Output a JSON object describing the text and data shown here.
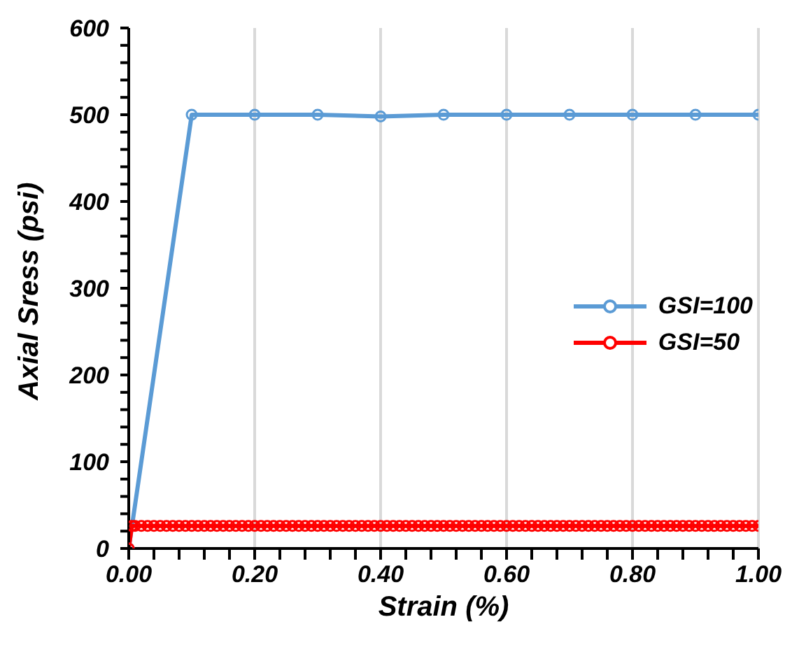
{
  "chart_data": {
    "type": "line",
    "xlabel": "Strain (%)",
    "ylabel": "Axial Sress (psi)",
    "xlim": [
      0,
      1
    ],
    "ylim": [
      0,
      600
    ],
    "xticks": [
      {
        "value": 0,
        "label": "0.00"
      },
      {
        "value": 0.04,
        "label": null
      },
      {
        "value": 0.08,
        "label": null
      },
      {
        "value": 0.12,
        "label": null
      },
      {
        "value": 0.16,
        "label": null
      },
      {
        "value": 0.2,
        "label": "0.20"
      },
      {
        "value": 0.24,
        "label": null
      },
      {
        "value": 0.28,
        "label": null
      },
      {
        "value": 0.32,
        "label": null
      },
      {
        "value": 0.36,
        "label": null
      },
      {
        "value": 0.4,
        "label": "0.40"
      },
      {
        "value": 0.44,
        "label": null
      },
      {
        "value": 0.48,
        "label": null
      },
      {
        "value": 0.52,
        "label": null
      },
      {
        "value": 0.56,
        "label": null
      },
      {
        "value": 0.6,
        "label": "0.60"
      },
      {
        "value": 0.64,
        "label": null
      },
      {
        "value": 0.68,
        "label": null
      },
      {
        "value": 0.72,
        "label": null
      },
      {
        "value": 0.76,
        "label": null
      },
      {
        "value": 0.8,
        "label": "0.80"
      },
      {
        "value": 0.84,
        "label": null
      },
      {
        "value": 0.88,
        "label": null
      },
      {
        "value": 0.92,
        "label": null
      },
      {
        "value": 0.96,
        "label": null
      },
      {
        "value": 1,
        "label": "1.00"
      }
    ],
    "yticks": [
      0,
      {
        "value": 20,
        "label": null
      },
      {
        "value": 40,
        "label": null
      },
      {
        "value": 60,
        "label": null
      },
      {
        "value": 80,
        "label": null
      },
      100,
      {
        "value": 120,
        "label": null
      },
      {
        "value": 140,
        "label": null
      },
      {
        "value": 160,
        "label": null
      },
      {
        "value": 180,
        "label": null
      },
      200,
      {
        "value": 220,
        "label": null
      },
      {
        "value": 240,
        "label": null
      },
      {
        "value": 260,
        "label": null
      },
      {
        "value": 280,
        "label": null
      },
      300,
      {
        "value": 320,
        "label": null
      },
      {
        "value": 340,
        "label": null
      },
      {
        "value": 360,
        "label": null
      },
      {
        "value": 380,
        "label": null
      },
      400,
      {
        "value": 420,
        "label": null
      },
      {
        "value": 440,
        "label": null
      },
      {
        "value": 460,
        "label": null
      },
      {
        "value": 480,
        "label": null
      },
      500,
      {
        "value": 520,
        "label": null
      },
      {
        "value": 540,
        "label": null
      },
      {
        "value": 560,
        "label": null
      },
      {
        "value": 580,
        "label": null
      },
      600
    ],
    "grid": "x",
    "legend": "right",
    "marker": "circle",
    "line_style": "solid",
    "series": [
      {
        "name": "GSI=100",
        "color": "#5b9bd5",
        "x": [
          0,
          0.1,
          0.2,
          0.3,
          0.4,
          0.5,
          0.6,
          0.7,
          0.8,
          0.9,
          1.0
        ],
        "values": [
          0,
          500,
          500,
          500,
          498,
          500,
          500,
          500,
          500,
          500,
          500
        ]
      },
      {
        "name": "GSI=50",
        "color": "#ff0000",
        "x": [
          0,
          0.005,
          0.01,
          0.02,
          0.03,
          0.04,
          0.05,
          0.06,
          0.07,
          0.08,
          0.09,
          0.1,
          0.11,
          0.12,
          0.13,
          0.14,
          0.15,
          0.16,
          0.17,
          0.18,
          0.19,
          0.2,
          0.21,
          0.22,
          0.23,
          0.24,
          0.25,
          0.26,
          0.27,
          0.28,
          0.29,
          0.3,
          0.31,
          0.32,
          0.33,
          0.34,
          0.35,
          0.36,
          0.37,
          0.38,
          0.39,
          0.4,
          0.41,
          0.42,
          0.43,
          0.44,
          0.45,
          0.46,
          0.47,
          0.48,
          0.49,
          0.5,
          0.51,
          0.52,
          0.53,
          0.54,
          0.55,
          0.56,
          0.57,
          0.58,
          0.59,
          0.6,
          0.61,
          0.62,
          0.63,
          0.64,
          0.65,
          0.66,
          0.67,
          0.68,
          0.69,
          0.7,
          0.71,
          0.72,
          0.73,
          0.74,
          0.75,
          0.76,
          0.77,
          0.78,
          0.79,
          0.8,
          0.81,
          0.82,
          0.83,
          0.84,
          0.85,
          0.86,
          0.87,
          0.88,
          0.89,
          0.9,
          0.91,
          0.92,
          0.93,
          0.94,
          0.95,
          0.96,
          0.97,
          0.98,
          0.99,
          1.0
        ],
        "values": [
          0,
          26,
          26,
          26,
          26,
          26,
          26,
          26,
          26,
          26,
          26,
          26,
          26,
          26,
          26,
          26,
          26,
          26,
          26,
          26,
          26,
          26,
          26,
          26,
          26,
          26,
          26,
          26,
          26,
          26,
          26,
          26,
          26,
          26,
          26,
          26,
          26,
          26,
          26,
          26,
          26,
          26,
          26,
          26,
          26,
          26,
          26,
          26,
          26,
          26,
          26,
          26,
          26,
          26,
          26,
          26,
          26,
          26,
          26,
          26,
          26,
          26,
          26,
          26,
          26,
          26,
          26,
          26,
          26,
          26,
          26,
          26,
          26,
          26,
          26,
          26,
          26,
          26,
          26,
          26,
          26,
          26,
          26,
          26,
          26,
          26,
          26,
          26,
          26,
          26,
          26,
          26,
          26,
          26,
          26,
          26,
          26,
          26,
          26,
          26,
          26,
          26
        ]
      }
    ]
  }
}
